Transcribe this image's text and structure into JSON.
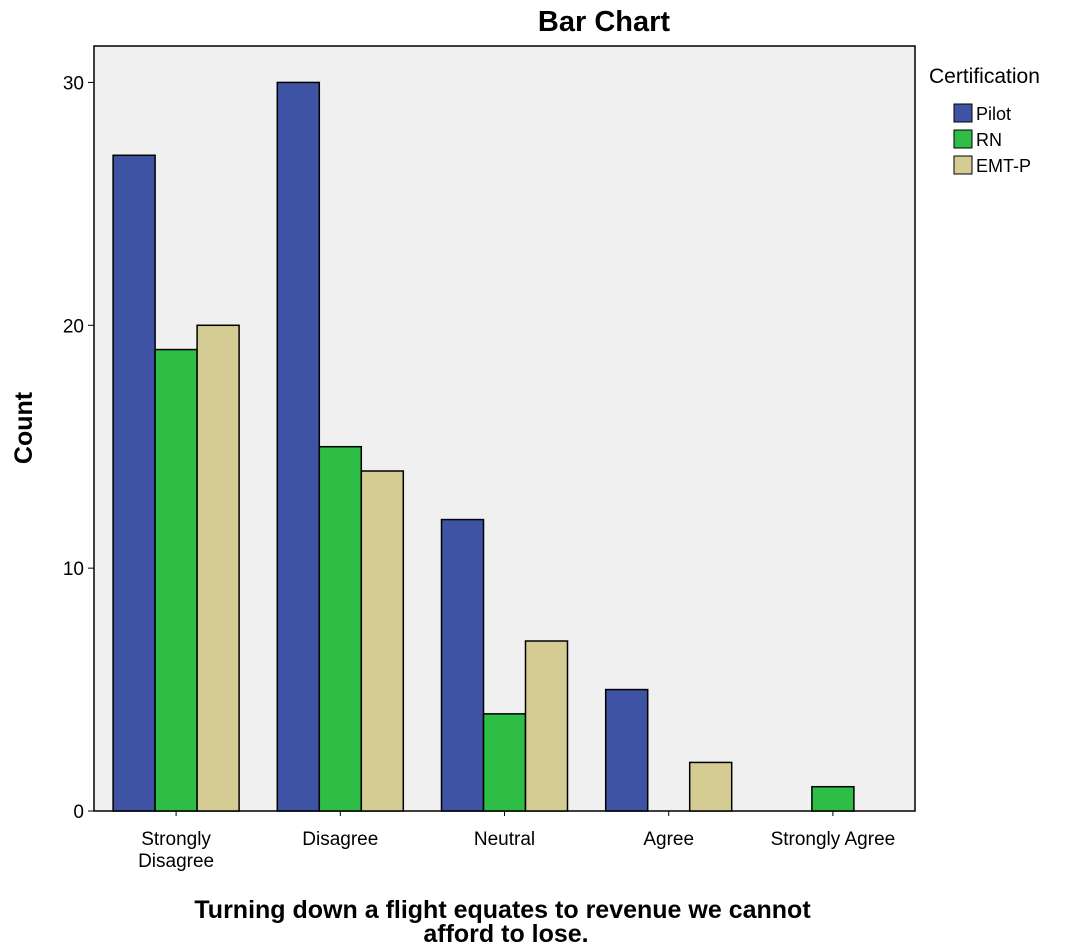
{
  "chart_data": {
    "type": "bar",
    "title": "Bar Chart",
    "xlabel": [
      "Turning down a flight equates to revenue we cannot",
      "afford to lose."
    ],
    "ylabel": "Count",
    "categories": [
      [
        "Strongly",
        "Disagree"
      ],
      [
        "Disagree"
      ],
      [
        "Neutral"
      ],
      [
        "Agree"
      ],
      [
        "Strongly Agree"
      ]
    ],
    "series": [
      {
        "name": "Pilot",
        "color": "#3e53a4",
        "values": [
          27,
          30,
          12,
          5,
          0
        ]
      },
      {
        "name": "RN",
        "color": "#2ebd45",
        "values": [
          19,
          15,
          4,
          0,
          1
        ]
      },
      {
        "name": "EMT-P",
        "color": "#d4cc93",
        "values": [
          20,
          14,
          7,
          2,
          0
        ]
      }
    ],
    "ylim": [
      0,
      31.5
    ],
    "yticks": [
      0,
      10,
      20,
      30
    ],
    "grid": false,
    "legend": {
      "title": "Certification",
      "position": "right"
    },
    "plot_background": "#f0f0f0"
  }
}
